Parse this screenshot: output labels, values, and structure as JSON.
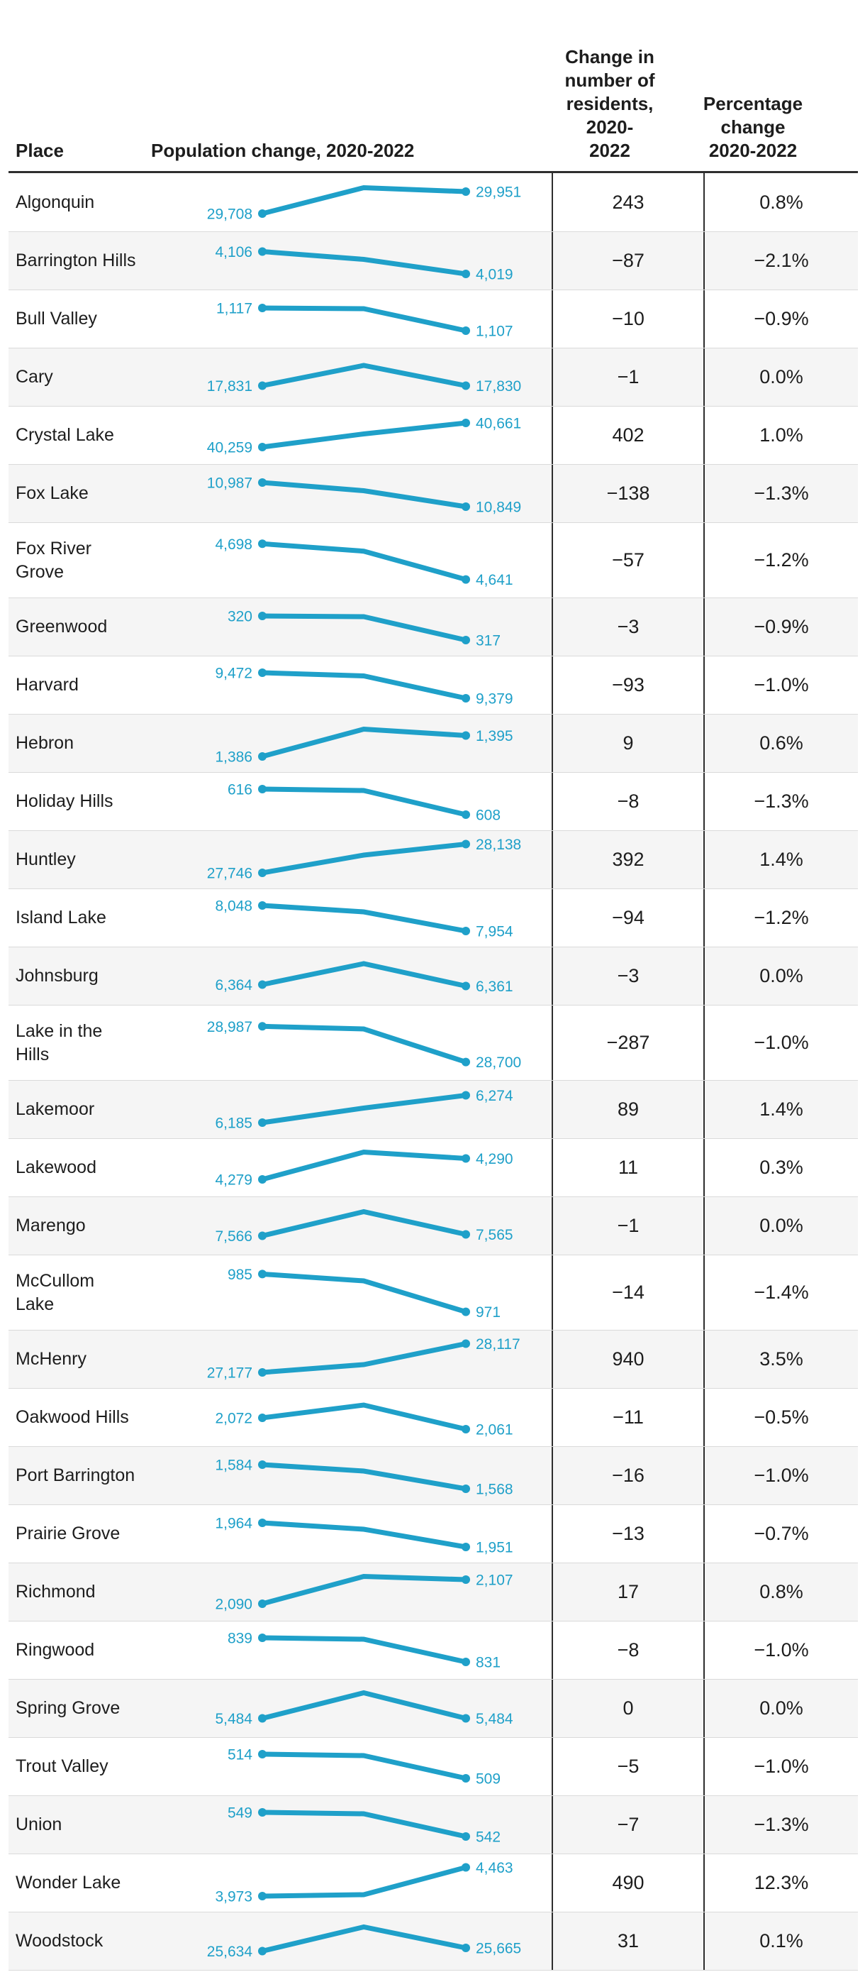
{
  "colors": {
    "accent_blue": "#1fa0c9",
    "text_dark": "#1d1d1d",
    "row_alt_bg": "#f5f5f5",
    "row_divider": "#dadada",
    "dark_border": "#2e2e2e"
  },
  "header": {
    "place": "Place",
    "population": "Population change, 2020-2022",
    "residents_change": "Change in\nnumber of\nresidents,\n2020-\n2022",
    "percentage_change": "Percentage\nchange\n2020-2022"
  },
  "chart_data": {
    "type": "table",
    "columns": [
      "Place",
      "Population change, 2020-2022",
      "Change in number of residents, 2020-2022",
      "Percentage change 2020-2022"
    ],
    "sparkline_years": [
      2020,
      2021,
      2022
    ],
    "sparkline_note": "spark values are normalized vertical positions (0=top, 1=bottom) of the 2020/2021/2022 points",
    "rows": [
      {
        "place": "Algonquin",
        "pop_2020": "29,708",
        "pop_2022": "29,951",
        "change": "243",
        "pct_change": "0.8%",
        "spark": [
          0.82,
          0.09,
          0.2
        ],
        "tall": false
      },
      {
        "place": "Barrington Hills",
        "pop_2020": "4,106",
        "pop_2022": "4,019",
        "change": "−87",
        "pct_change": "−2.1%",
        "spark": [
          0.23,
          0.45,
          0.86
        ],
        "tall": false
      },
      {
        "place": "Bull Valley",
        "pop_2020": "1,117",
        "pop_2022": "1,107",
        "change": "−10",
        "pct_change": "−0.9%",
        "spark": [
          0.18,
          0.2,
          0.82
        ],
        "tall": false
      },
      {
        "place": "Cary",
        "pop_2020": "17,831",
        "pop_2022": "17,830",
        "change": "−1",
        "pct_change": "0.0%",
        "spark": [
          0.73,
          0.16,
          0.73
        ],
        "tall": false
      },
      {
        "place": "Crystal Lake",
        "pop_2020": "40,259",
        "pop_2022": "40,661",
        "change": "402",
        "pct_change": "1.0%",
        "spark": [
          0.82,
          0.45,
          0.14
        ],
        "tall": false
      },
      {
        "place": "Fox Lake",
        "pop_2020": "10,987",
        "pop_2022": "10,849",
        "change": "−138",
        "pct_change": "−1.3%",
        "spark": [
          0.18,
          0.41,
          0.86
        ],
        "tall": false
      },
      {
        "place": "Fox River\nGrove",
        "pop_2020": "4,698",
        "pop_2022": "4,641",
        "change": "−57",
        "pct_change": "−1.2%",
        "spark": [
          0.18,
          0.32,
          0.86
        ],
        "tall": true
      },
      {
        "place": "Greenwood",
        "pop_2020": "320",
        "pop_2022": "317",
        "change": "−3",
        "pct_change": "−0.9%",
        "spark": [
          0.18,
          0.2,
          0.86
        ],
        "tall": false
      },
      {
        "place": "Harvard",
        "pop_2020": "9,472",
        "pop_2022": "9,379",
        "change": "−93",
        "pct_change": "−1.0%",
        "spark": [
          0.14,
          0.23,
          0.86
        ],
        "tall": false
      },
      {
        "place": "Hebron",
        "pop_2020": "1,386",
        "pop_2022": "1,395",
        "change": "9",
        "pct_change": "0.6%",
        "spark": [
          0.86,
          0.09,
          0.27
        ],
        "tall": false
      },
      {
        "place": "Holiday Hills",
        "pop_2020": "616",
        "pop_2022": "608",
        "change": "−8",
        "pct_change": "−1.3%",
        "spark": [
          0.14,
          0.18,
          0.86
        ],
        "tall": false
      },
      {
        "place": "Huntley",
        "pop_2020": "27,746",
        "pop_2022": "28,138",
        "change": "392",
        "pct_change": "1.4%",
        "spark": [
          0.86,
          0.36,
          0.05
        ],
        "tall": false
      },
      {
        "place": "Island Lake",
        "pop_2020": "8,048",
        "pop_2022": "7,954",
        "change": "−94",
        "pct_change": "−1.2%",
        "spark": [
          0.14,
          0.32,
          0.86
        ],
        "tall": false
      },
      {
        "place": "Johnsburg",
        "pop_2020": "6,364",
        "pop_2022": "6,361",
        "change": "−3",
        "pct_change": "0.0%",
        "spark": [
          0.73,
          0.14,
          0.77
        ],
        "tall": false
      },
      {
        "place": "Lake in the\nHills",
        "pop_2020": "28,987",
        "pop_2022": "28,700",
        "change": "−287",
        "pct_change": "−1.0%",
        "spark": [
          0.18,
          0.23,
          0.86
        ],
        "tall": true
      },
      {
        "place": "Lakemoor",
        "pop_2020": "6,185",
        "pop_2022": "6,274",
        "change": "89",
        "pct_change": "1.4%",
        "spark": [
          0.86,
          0.45,
          0.09
        ],
        "tall": false
      },
      {
        "place": "Lakewood",
        "pop_2020": "4,279",
        "pop_2022": "4,290",
        "change": "11",
        "pct_change": "0.3%",
        "spark": [
          0.82,
          0.05,
          0.23
        ],
        "tall": false
      },
      {
        "place": "Marengo",
        "pop_2020": "7,566",
        "pop_2022": "7,565",
        "change": "−1",
        "pct_change": "0.0%",
        "spark": [
          0.77,
          0.09,
          0.73
        ],
        "tall": false
      },
      {
        "place": "McCullom\nLake",
        "pop_2020": "985",
        "pop_2022": "971",
        "change": "−14",
        "pct_change": "−1.4%",
        "spark": [
          0.14,
          0.27,
          0.86
        ],
        "tall": true
      },
      {
        "place": "McHenry",
        "pop_2020": "27,177",
        "pop_2022": "28,117",
        "change": "940",
        "pct_change": "3.5%",
        "spark": [
          0.86,
          0.64,
          0.05
        ],
        "tall": false
      },
      {
        "place": "Oakwood Hills",
        "pop_2020": "2,072",
        "pop_2022": "2,061",
        "change": "−11",
        "pct_change": "−0.5%",
        "spark": [
          0.5,
          0.14,
          0.82
        ],
        "tall": false
      },
      {
        "place": "Port Barrington",
        "pop_2020": "1,584",
        "pop_2022": "1,568",
        "change": "−16",
        "pct_change": "−1.0%",
        "spark": [
          0.18,
          0.36,
          0.86
        ],
        "tall": false
      },
      {
        "place": "Prairie Grove",
        "pop_2020": "1,964",
        "pop_2022": "1,951",
        "change": "−13",
        "pct_change": "−0.7%",
        "spark": [
          0.18,
          0.36,
          0.86
        ],
        "tall": false
      },
      {
        "place": "Richmond",
        "pop_2020": "2,090",
        "pop_2022": "2,107",
        "change": "17",
        "pct_change": "0.8%",
        "spark": [
          0.82,
          0.05,
          0.14
        ],
        "tall": false
      },
      {
        "place": "Ringwood",
        "pop_2020": "839",
        "pop_2022": "831",
        "change": "−8",
        "pct_change": "−1.0%",
        "spark": [
          0.14,
          0.18,
          0.82
        ],
        "tall": false
      },
      {
        "place": "Spring Grove",
        "pop_2020": "5,484",
        "pop_2022": "5,484",
        "change": "0",
        "pct_change": "0.0%",
        "spark": [
          0.77,
          0.05,
          0.77
        ],
        "tall": false
      },
      {
        "place": "Trout Valley",
        "pop_2020": "514",
        "pop_2022": "509",
        "change": "−5",
        "pct_change": "−1.0%",
        "spark": [
          0.14,
          0.18,
          0.82
        ],
        "tall": false
      },
      {
        "place": "Union",
        "pop_2020": "549",
        "pop_2022": "542",
        "change": "−7",
        "pct_change": "−1.3%",
        "spark": [
          0.14,
          0.18,
          0.82
        ],
        "tall": false
      },
      {
        "place": "Wonder Lake",
        "pop_2020": "3,973",
        "pop_2022": "4,463",
        "change": "490",
        "pct_change": "12.3%",
        "spark": [
          0.86,
          0.82,
          0.05
        ],
        "tall": false
      },
      {
        "place": "Woodstock",
        "pop_2020": "25,634",
        "pop_2022": "25,665",
        "change": "31",
        "pct_change": "0.1%",
        "spark": [
          0.77,
          0.09,
          0.68
        ],
        "tall": false
      }
    ]
  }
}
